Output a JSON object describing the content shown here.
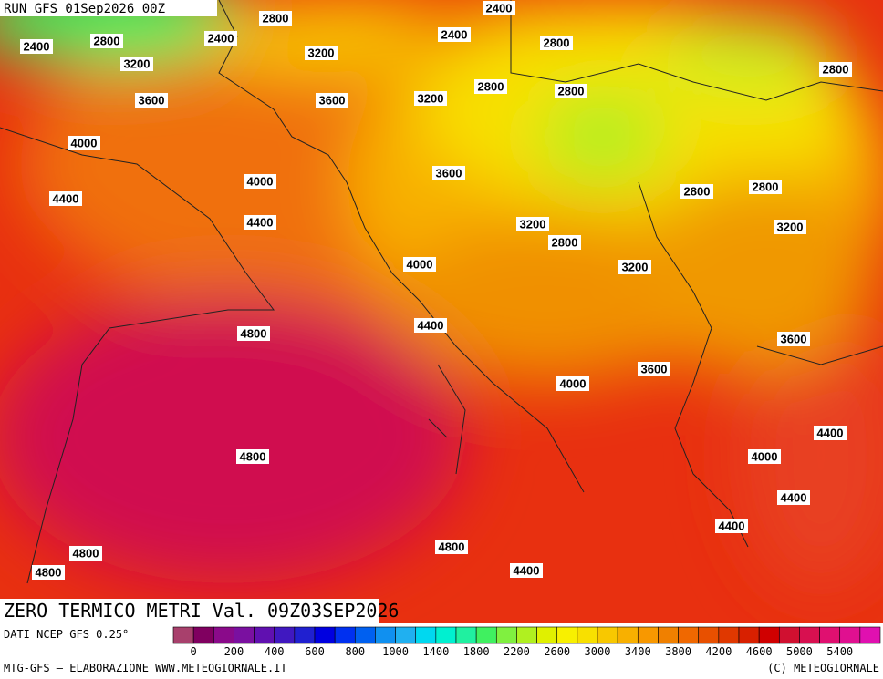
{
  "header": {
    "run": "RUN GFS 01Sep2026 00Z"
  },
  "map": {
    "contour_labels": [
      2800,
      2400,
      2400,
      2800,
      2400,
      2400,
      2800,
      3200,
      3200,
      2800,
      2800,
      2800,
      3200,
      3600,
      3600,
      4000,
      3600,
      4000,
      2800,
      2800,
      4400,
      4400,
      3200,
      2800,
      3200,
      4000,
      3200,
      4400,
      4800,
      3600,
      3600,
      4000,
      4400,
      4000,
      4800,
      4400,
      4400,
      4800,
      4800,
      4800,
      4400
    ]
  },
  "title": "ZERO TERMICO METRI Val. 09Z03SEP2026",
  "source": "DATI NCEP GFS 0.25°",
  "colorbar": {
    "colors": [
      "#a8406c",
      "#800060",
      "#8a0a8a",
      "#7a10a0",
      "#6010b0",
      "#4018c0",
      "#2020d0",
      "#0000e0",
      "#0030f0",
      "#0060f0",
      "#1090f0",
      "#20b0f0",
      "#00d8f0",
      "#00f0d0",
      "#20f0a0",
      "#40f060",
      "#80f040",
      "#b0f020",
      "#e0f000",
      "#f8f000",
      "#f8e000",
      "#f8c800",
      "#f8b000",
      "#f89800",
      "#f08000",
      "#f06800",
      "#e85000",
      "#e03800",
      "#d82000",
      "#d00000",
      "#d01030",
      "#d81050",
      "#e01070",
      "#e01090",
      "#e010b0"
    ],
    "ticks": [
      0,
      200,
      400,
      600,
      800,
      1000,
      1400,
      1800,
      2200,
      2600,
      3000,
      3400,
      3800,
      4200,
      4600,
      5000,
      5400
    ]
  },
  "footer": {
    "left": "MTG-GFS — ELABORAZIONE WWW.METEOGIORNALE.IT",
    "right": "(C) METEOGIORNALE"
  }
}
